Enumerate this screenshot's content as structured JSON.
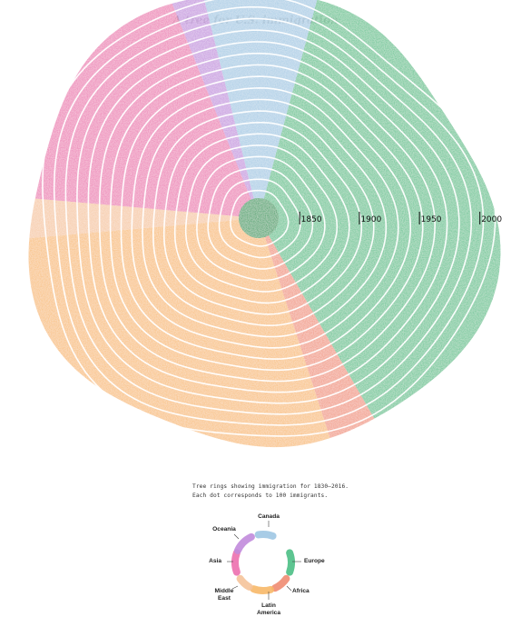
{
  "title": "A tree for U.S. immigration",
  "caption": {
    "line1": "Tree rings showing immigration for 1830–2016.",
    "line2": "Each dot corresponds to 100 immigrants."
  },
  "chart_data": {
    "type": "radial-ring",
    "x_range": [
      1830,
      2016
    ],
    "year_markers": [
      "1850",
      "1900",
      "1950",
      "2000"
    ],
    "ring_years": [
      1840,
      1850,
      1860,
      1870,
      1880,
      1890,
      1900,
      1910,
      1920,
      1930,
      1940,
      1950,
      1960,
      1970,
      1980,
      1990,
      2000,
      2010
    ],
    "regions": [
      {
        "name": "Canada",
        "color": "#9ec7e3"
      },
      {
        "name": "Europe",
        "color": "#4bbf85"
      },
      {
        "name": "Africa",
        "color": "#f08c72"
      },
      {
        "name": "Latin America",
        "color": "#f7b868"
      },
      {
        "name": "Middle East",
        "color": "#f5c39a"
      },
      {
        "name": "Asia",
        "color": "#ec6fae"
      },
      {
        "name": "Oceania",
        "color": "#c18bdc"
      }
    ],
    "legend_labels": {
      "canada": "Canada",
      "europe": "Europe",
      "africa": "Africa",
      "latin_line1": "Latin",
      "latin_line2": "America",
      "middle_line1": "Middle",
      "middle_line2": "East",
      "asia": "Asia",
      "oceania": "Oceania"
    }
  }
}
